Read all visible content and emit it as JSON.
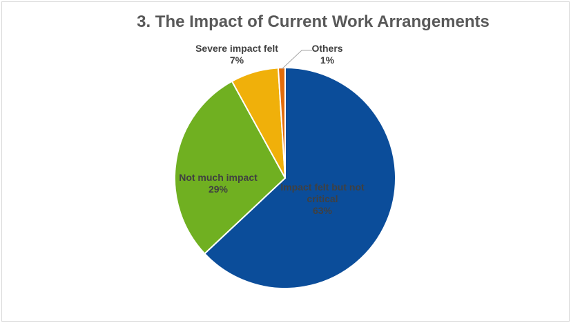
{
  "chart_data": {
    "type": "pie",
    "title": "3. The Impact of Current Work Arrangements",
    "slices": [
      {
        "label": "Impact felt but not critical",
        "value": 63,
        "display": "63%",
        "color": "#0b4d9a"
      },
      {
        "label": "Not much impact",
        "value": 29,
        "display": "29%",
        "color": "#70b021"
      },
      {
        "label": "Severe impact felt",
        "value": 7,
        "display": "7%",
        "color": "#f0b00a"
      },
      {
        "label": "Others",
        "value": 1,
        "display": "1%",
        "color": "#e36c0a"
      }
    ],
    "legend": "none",
    "data_labels": "category name and percentage"
  }
}
